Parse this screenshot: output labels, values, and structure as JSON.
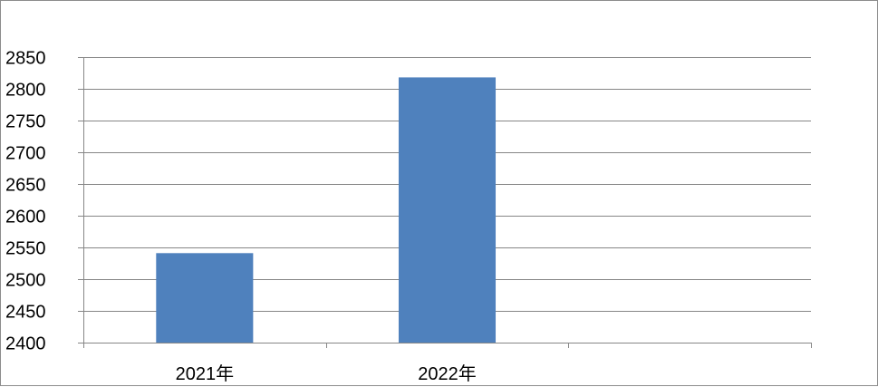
{
  "chart_data": {
    "type": "bar",
    "categories": [
      "2021年",
      "2022年",
      ""
    ],
    "values": [
      2541,
      2818,
      null
    ],
    "title": "",
    "xlabel": "",
    "ylabel": "",
    "ylim": [
      2400,
      2850
    ],
    "yticks": [
      2400,
      2450,
      2500,
      2550,
      2600,
      2650,
      2700,
      2750,
      2800,
      2850
    ],
    "grid": true,
    "legend": "none",
    "colors": {
      "bar": "#4F81BD",
      "grid": "#868686",
      "axis": "#868686",
      "frame": "#8c8c8c"
    }
  }
}
